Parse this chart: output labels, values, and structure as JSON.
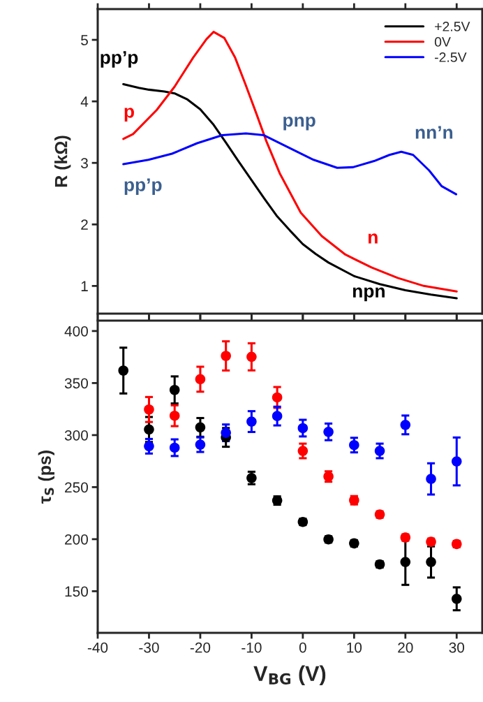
{
  "chart_data": [
    {
      "type": "line",
      "ylabel": "R (kΩ)",
      "xlim": [
        -40,
        35
      ],
      "xticks": [
        -40,
        -30,
        -20,
        -10,
        0,
        10,
        20,
        30
      ],
      "ylim": [
        0.55,
        5.5
      ],
      "yticks": [
        1,
        2,
        3,
        4,
        5
      ],
      "tick_labels": "y",
      "legend": "top right",
      "grid": false,
      "marker": "none",
      "line_style": "solid",
      "series": [
        {
          "name": "+2.5V",
          "color": "#000000",
          "x": [
            -35,
            -32,
            -30,
            -27,
            -25,
            -22.5,
            -20,
            -17.5,
            -15,
            -12.5,
            -10,
            -7.5,
            -5,
            -2.5,
            0,
            2.5,
            5,
            10,
            15,
            20,
            25,
            30
          ],
          "values": [
            4.28,
            4.22,
            4.19,
            4.16,
            4.13,
            4.03,
            3.87,
            3.63,
            3.33,
            3.02,
            2.72,
            2.42,
            2.13,
            1.9,
            1.68,
            1.52,
            1.38,
            1.16,
            1.03,
            0.93,
            0.86,
            0.8
          ]
        },
        {
          "name": "0V",
          "color": "#ff0000",
          "x": [
            -35,
            -33.1,
            -28.5,
            -25,
            -21.4,
            -18.8,
            -17.4,
            -15.3,
            -13.2,
            -11.2,
            -9.1,
            -7.1,
            -4.5,
            -0.4,
            3.7,
            8.3,
            13.4,
            18.5,
            23.6,
            30
          ],
          "values": [
            3.39,
            3.47,
            3.86,
            4.24,
            4.71,
            5.01,
            5.13,
            5.03,
            4.71,
            4.28,
            3.81,
            3.35,
            2.83,
            2.19,
            1.81,
            1.51,
            1.3,
            1.13,
            1.0,
            0.91
          ]
        },
        {
          "name": "-2.5V",
          "color": "#0000ff",
          "x": [
            -35,
            -30.1,
            -25.5,
            -20.6,
            -15.7,
            -11.1,
            -7.6,
            -3,
            2.1,
            6.7,
            9.8,
            13.9,
            16.9,
            19.2,
            21.5,
            24.6,
            27.1,
            29.9
          ],
          "values": [
            2.98,
            3.05,
            3.15,
            3.32,
            3.45,
            3.48,
            3.45,
            3.26,
            3.05,
            2.92,
            2.93,
            3.03,
            3.13,
            3.18,
            3.13,
            2.88,
            2.62,
            2.49
          ]
        }
      ],
      "annotations": [
        "pp’p",
        "p",
        "pp’p",
        "pnp",
        "nn’n",
        "n",
        "npn"
      ]
    },
    {
      "type": "scatter",
      "xlabel": "V$_{BG}$ (V)",
      "ylabel": "τ$_{S}$ (ps)",
      "xlim": [
        -40,
        35
      ],
      "xticks": [
        -40,
        -30,
        -20,
        -10,
        0,
        10,
        20,
        30
      ],
      "ylim": [
        110,
        410
      ],
      "yticks": [
        150,
        200,
        250,
        300,
        350,
        400
      ],
      "legend": false,
      "grid": false,
      "marker": "circle",
      "series": [
        {
          "color": "#000000",
          "x": [
            -35,
            -30,
            -25,
            -20,
            -15,
            -10,
            -5,
            0,
            5,
            10,
            15,
            20,
            25,
            30
          ],
          "values": [
            362,
            305.4,
            343.4,
            307.4,
            297.8,
            258.8,
            237.1,
            216.6,
            199.8,
            196,
            175.8,
            178.1,
            178.1,
            142.7
          ],
          "errors": [
            22,
            12,
            13,
            9,
            9,
            6,
            4,
            3,
            3,
            3,
            3,
            22,
            15,
            11
          ]
        },
        {
          "color": "#ff0000",
          "x": [
            -30,
            -25,
            -20,
            -15,
            -10,
            -5,
            0,
            5,
            10,
            15,
            20,
            25,
            30
          ],
          "values": [
            324.6,
            318.6,
            353.7,
            376.1,
            375.2,
            336.2,
            284.8,
            260.2,
            237.4,
            223.7,
            201.6,
            197.5,
            195.3
          ],
          "errors": [
            12,
            10,
            12,
            14,
            13,
            10,
            7,
            5,
            4,
            3,
            3,
            3,
            3
          ]
        },
        {
          "color": "#0000ff",
          "x": [
            -30,
            -25,
            -20,
            -15,
            -10,
            -5,
            0,
            5,
            10,
            15,
            20,
            25,
            30
          ],
          "values": [
            289.3,
            287.9,
            290.8,
            302.2,
            313,
            318.3,
            306.7,
            303.1,
            290.4,
            284.8,
            309.8,
            257.9,
            274.7
          ],
          "errors": [
            7,
            8,
            7,
            8,
            10,
            9,
            8,
            8,
            7,
            7,
            9,
            15,
            23
          ]
        }
      ]
    }
  ]
}
